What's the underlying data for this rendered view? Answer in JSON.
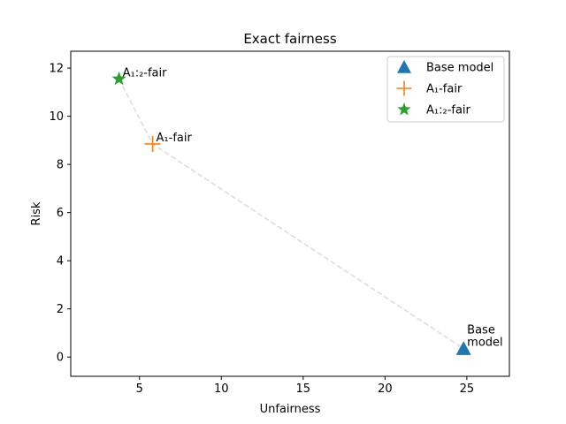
{
  "chart_data": {
    "type": "scatter",
    "title": "Exact fairness",
    "xlabel": "Unfairness",
    "ylabel": "Risk",
    "xlim": [
      0.8,
      27.6
    ],
    "ylim": [
      -0.8,
      12.7
    ],
    "xticks": [
      5,
      10,
      15,
      20,
      25
    ],
    "yticks": [
      0,
      2,
      4,
      6,
      8,
      10,
      12
    ],
    "grid": false,
    "legend_position": "top-right",
    "series": [
      {
        "name": "Base model",
        "marker": "triangle",
        "color": "#1f77b4",
        "points": [
          {
            "x": 24.8,
            "y": 0.35
          }
        ],
        "annotation": [
          "Base",
          "model"
        ]
      },
      {
        "name": "A₁-fair",
        "marker": "plus",
        "color": "#ff7f0e",
        "points": [
          {
            "x": 5.8,
            "y": 8.85
          }
        ],
        "annotation": [
          "A₁-fair"
        ]
      },
      {
        "name": "A₁:₂-fair",
        "marker": "star",
        "color": "#2ca02c",
        "points": [
          {
            "x": 3.75,
            "y": 11.55
          }
        ],
        "annotation": [
          "A₁:₂-fair"
        ]
      }
    ],
    "connector": {
      "style": "dashed",
      "color": "#dddddd",
      "order": [
        2,
        1,
        0
      ]
    }
  }
}
